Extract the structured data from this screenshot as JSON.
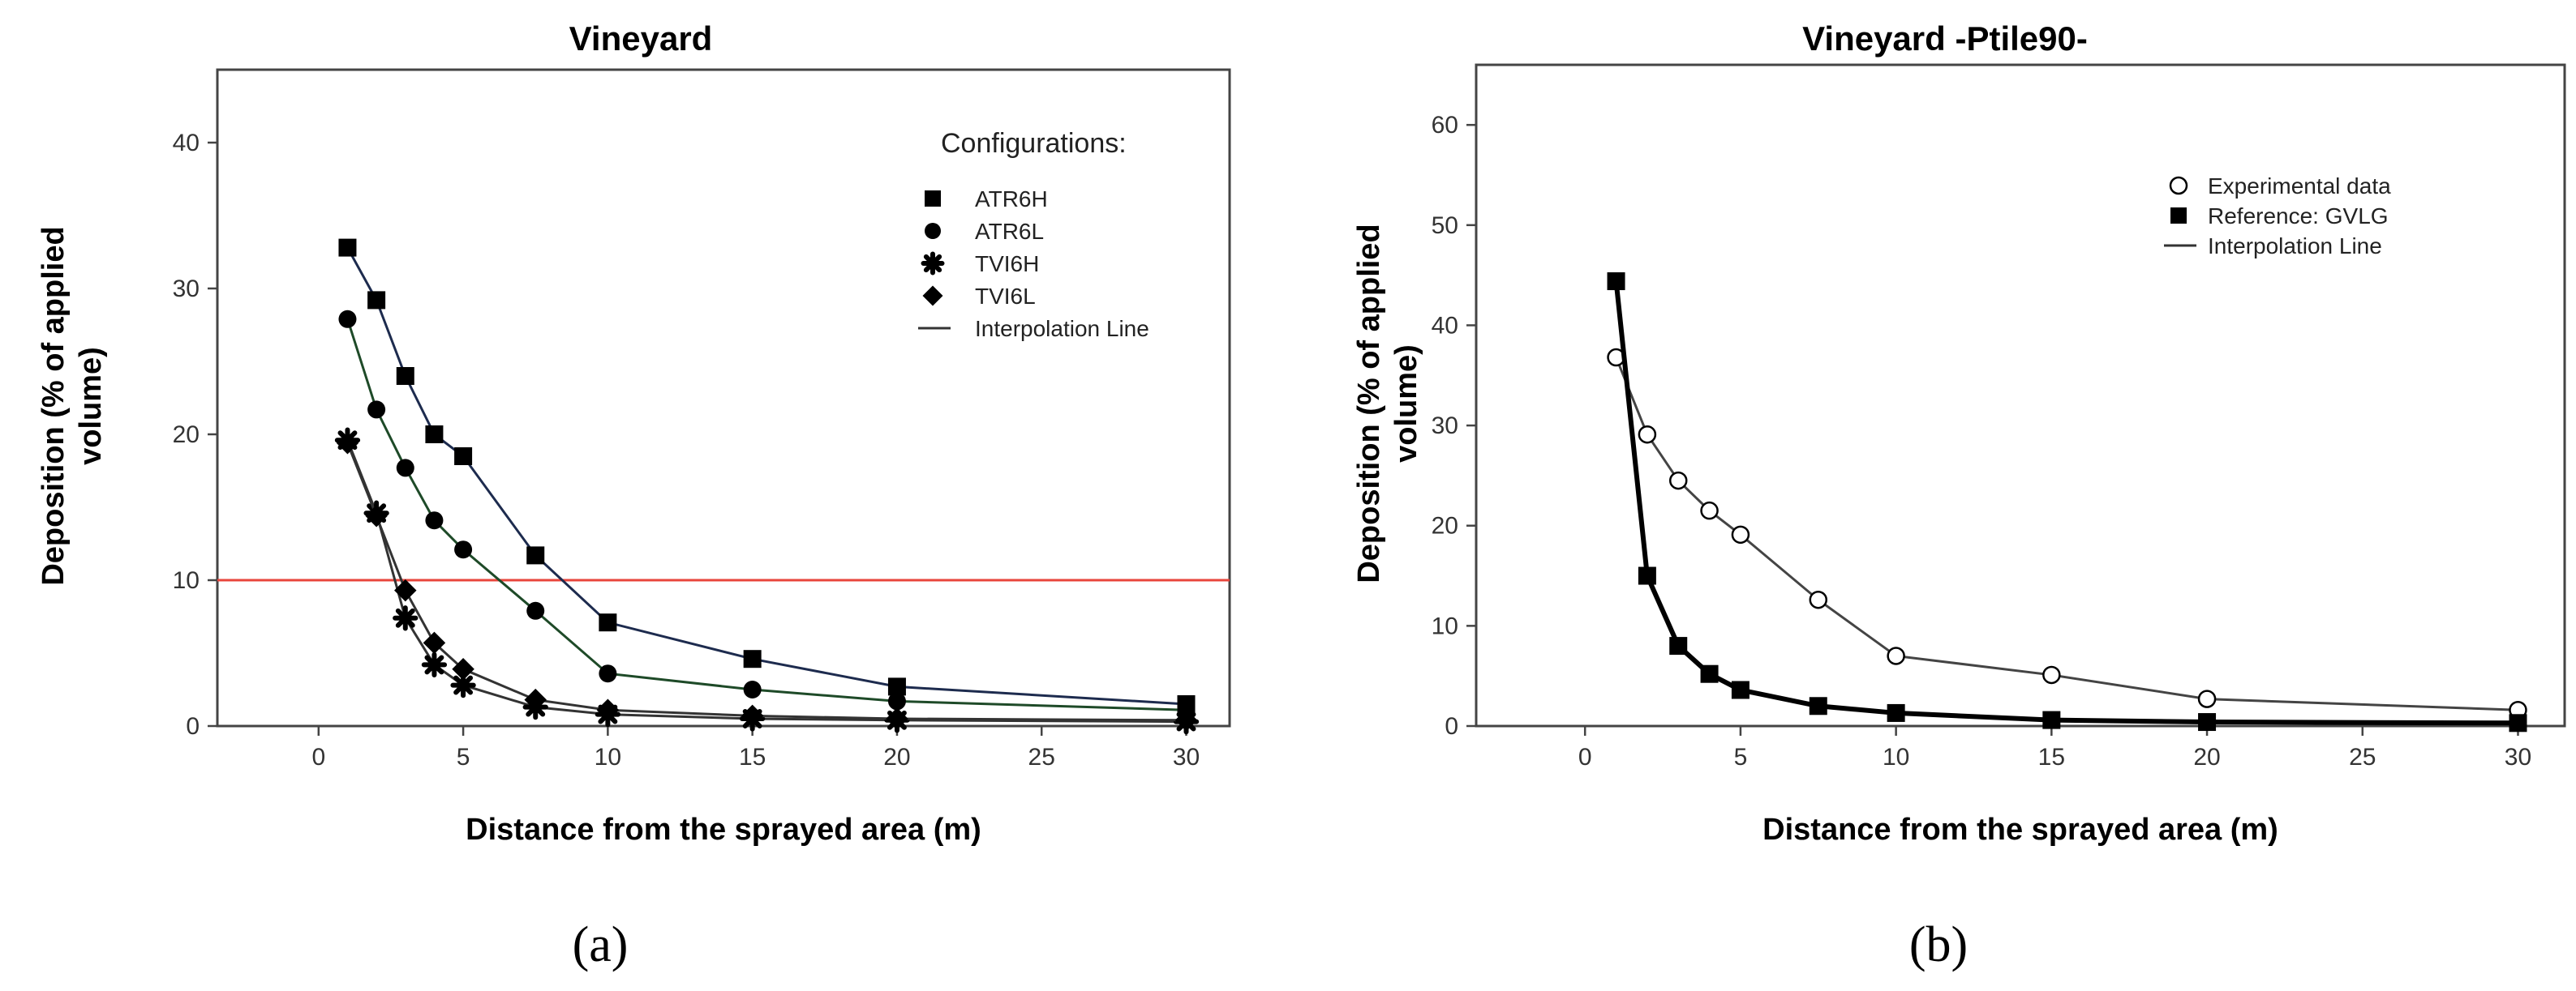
{
  "chart_data": [
    {
      "type": "line",
      "title": "Vineyard",
      "xlabel": "Distance from the sprayed area (m)",
      "ylabel": "Deposition (% of applied volume)",
      "ylabel_lines": [
        "Deposition (% of applied",
        "volume)"
      ],
      "xlim": [
        -3.5,
        31.5
      ],
      "ylim": [
        0,
        45
      ],
      "xticks": [
        0,
        5,
        10,
        15,
        20,
        25,
        30
      ],
      "yticks": [
        0,
        10,
        20,
        30,
        40
      ],
      "grid": false,
      "legend_title": "Configurations:",
      "legend_position": "top-right",
      "reference_line": {
        "y": 10,
        "color": "#e8453c"
      },
      "series": [
        {
          "name": "ATR6H",
          "marker": "square",
          "line_color": "#1d2b4e",
          "x": [
            1,
            2,
            3,
            4,
            5,
            7.5,
            10,
            15,
            20,
            30
          ],
          "values": [
            32.8,
            29.2,
            24.0,
            20.0,
            18.5,
            11.7,
            7.1,
            4.6,
            2.7,
            1.5
          ]
        },
        {
          "name": "ATR6L",
          "marker": "circle",
          "line_color": "#1e4a28",
          "x": [
            1,
            2,
            3,
            4,
            5,
            7.5,
            10,
            15,
            20,
            30
          ],
          "values": [
            27.9,
            21.7,
            17.7,
            14.1,
            12.1,
            7.9,
            3.6,
            2.5,
            1.7,
            1.1
          ]
        },
        {
          "name": "TVI6H",
          "marker": "asterisk",
          "line_color": "#333333",
          "x": [
            1,
            2,
            3,
            4,
            5,
            7.5,
            10,
            15,
            20,
            30
          ],
          "values": [
            19.6,
            14.6,
            7.4,
            4.2,
            2.8,
            1.3,
            0.8,
            0.5,
            0.4,
            0.3
          ]
        },
        {
          "name": "TVI6L",
          "marker": "diamond",
          "line_color": "#333333",
          "x": [
            1,
            2,
            3,
            4,
            5,
            7.5,
            10,
            15,
            20,
            30
          ],
          "values": [
            19.4,
            14.4,
            9.3,
            5.7,
            3.9,
            1.8,
            1.1,
            0.7,
            0.5,
            0.4
          ]
        }
      ],
      "legend_extra": "Interpolation Line",
      "caption": "(a)"
    },
    {
      "type": "line",
      "title": "Vineyard -Ptile90-",
      "xlabel": "Distance from the sprayed area (m)",
      "ylabel": "Deposition (% of applied volume)",
      "ylabel_lines": [
        "Deposition (% of applied",
        "volume)"
      ],
      "xlim": [
        -3.5,
        31.5
      ],
      "ylim": [
        0,
        66
      ],
      "xticks": [
        0,
        5,
        10,
        15,
        20,
        25,
        30
      ],
      "yticks": [
        0,
        10,
        20,
        30,
        40,
        50,
        60
      ],
      "grid": false,
      "legend_position": "top-right",
      "series": [
        {
          "name": "Experimental data",
          "marker": "open-circle",
          "line_color": "#444444",
          "x": [
            1,
            2,
            3,
            4,
            5,
            7.5,
            10,
            15,
            20,
            30
          ],
          "values": [
            36.8,
            29.1,
            24.5,
            21.5,
            19.1,
            12.6,
            7.0,
            5.1,
            2.7,
            1.6
          ]
        },
        {
          "name": "Reference: GVLG",
          "marker": "square",
          "line_color": "#000000",
          "x": [
            1,
            2,
            3,
            4,
            5,
            7.5,
            10,
            15,
            20,
            30
          ],
          "values": [
            44.4,
            15.0,
            8.0,
            5.2,
            3.6,
            2.0,
            1.3,
            0.6,
            0.4,
            0.3
          ]
        }
      ],
      "legend_extra": "Interpolation Line",
      "caption": "(b)"
    }
  ]
}
